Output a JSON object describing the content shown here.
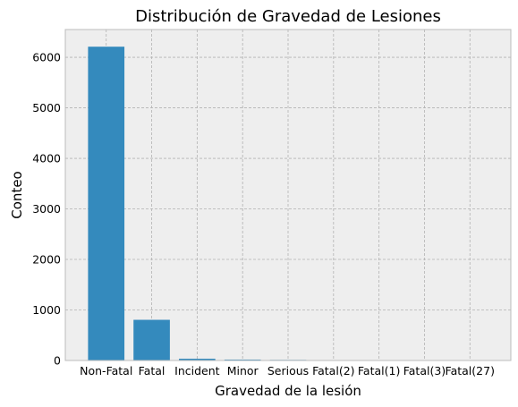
{
  "chart_data": {
    "type": "bar",
    "title": "Distribución de Gravedad de Lesiones",
    "xlabel": "Gravedad de la lesión",
    "ylabel": "Conteo",
    "categories": [
      "Non-Fatal",
      "Fatal",
      "Incident",
      "Minor",
      "Serious",
      "Fatal(2)",
      "Fatal(1)",
      "Fatal(3)",
      "Fatal(27)"
    ],
    "values": [
      6210,
      805,
      35,
      18,
      12,
      8,
      6,
      2,
      1
    ],
    "ylim": [
      0,
      6550
    ],
    "yticks": [
      0,
      1000,
      2000,
      3000,
      4000,
      5000,
      6000
    ],
    "grid": true,
    "colors": {
      "bar": "#348abd",
      "plot_background": "#eeeeee",
      "grid": "#b2b2b2",
      "frame": "#bcbcbc"
    }
  }
}
